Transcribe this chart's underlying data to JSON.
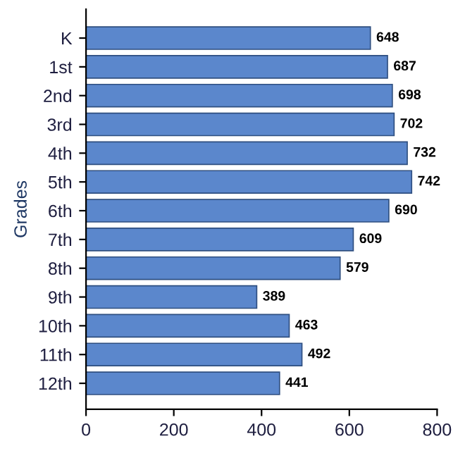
{
  "chart_data": {
    "type": "bar",
    "orientation": "horizontal",
    "ylabel": "Grades",
    "categories": [
      "K",
      "1st",
      "2nd",
      "3rd",
      "4th",
      "5th",
      "6th",
      "7th",
      "8th",
      "9th",
      "10th",
      "11th",
      "12th"
    ],
    "values": [
      648,
      687,
      698,
      702,
      732,
      742,
      690,
      609,
      579,
      389,
      463,
      492,
      441
    ],
    "color": "#5b87cc",
    "xlim": [
      0,
      800
    ],
    "xticks": [
      0,
      200,
      400,
      600,
      800
    ],
    "data_labels": true,
    "grid": false,
    "legend": false
  }
}
